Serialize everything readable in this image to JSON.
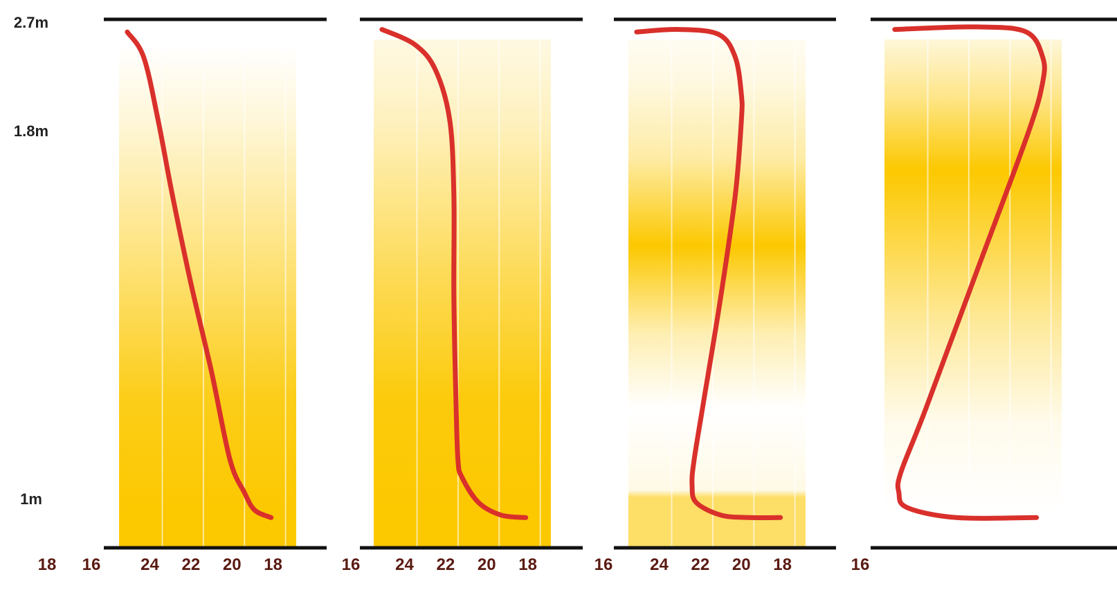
{
  "chart_data": {
    "type": "line",
    "title": "",
    "xlabel": "",
    "ylabel": "",
    "y_tick_labels": [
      "2.7m",
      "1.8m",
      "1m"
    ],
    "y_ticks": [
      2.7,
      1.8,
      1.0
    ],
    "x_tick_labels": [
      "24",
      "22",
      "20",
      "18",
      "16"
    ],
    "x_ticks": [
      24,
      22,
      20,
      18,
      16
    ],
    "stray_labels": [
      "18",
      "16"
    ],
    "ylim": [
      0.6,
      2.7
    ],
    "xlim": [
      25.5,
      16
    ],
    "grid": true,
    "colors": {
      "curve": "#d9302b",
      "fill": "#fcc800",
      "frame": "#111111"
    },
    "panels": [
      {
        "x_tick_labels": [
          "24",
          "22",
          "20",
          "18"
        ],
        "fill_profile": [
          [
            0.75,
            1.0
          ],
          [
            1.2,
            0.9
          ],
          [
            1.7,
            0.55
          ],
          [
            2.3,
            0.15
          ],
          [
            2.6,
            0.0
          ]
        ],
        "series": [
          {
            "x": [
              25.1,
              24.3,
              23.6,
              22.9,
              22.0,
              21.0,
              20.1,
              19.4,
              18.9,
              18.1
            ],
            "y": [
              2.65,
              2.55,
              2.3,
              2.0,
              1.65,
              1.3,
              0.95,
              0.82,
              0.75,
              0.72
            ]
          }
        ]
      },
      {
        "x_tick_labels": [
          "24",
          "22",
          "20",
          "18"
        ],
        "fill_profile": [
          [
            0.75,
            1.0
          ],
          [
            1.2,
            0.95
          ],
          [
            1.7,
            0.65
          ],
          [
            2.3,
            0.25
          ],
          [
            2.6,
            0.12
          ]
        ],
        "series": [
          {
            "x": [
              25.1,
              23.5,
              22.5,
              21.8,
              21.6,
              21.6,
              21.5,
              21.4,
              21.2,
              20.4,
              19.3,
              18.1
            ],
            "y": [
              2.66,
              2.6,
              2.5,
              2.3,
              2.0,
              1.6,
              1.2,
              0.95,
              0.88,
              0.78,
              0.73,
              0.72
            ]
          }
        ]
      },
      {
        "x_tick_labels": [
          "24",
          "22",
          "20",
          "18"
        ],
        "fill_profile": [
          [
            0.72,
            0.6
          ],
          [
            0.8,
            0.6
          ],
          [
            0.83,
            0.1
          ],
          [
            1.15,
            0.0
          ],
          [
            1.45,
            0.3
          ],
          [
            1.8,
            1.0
          ],
          [
            2.15,
            0.35
          ],
          [
            2.45,
            0.12
          ],
          [
            2.66,
            0.05
          ]
        ],
        "series": [
          {
            "x": [
              25.1,
              23.0,
              21.1,
              20.3,
              20.0,
              20.0,
              20.3,
              21.0,
              21.8,
              22.3,
              22.4,
              22.2,
              21.0,
              19.6,
              18.1
            ],
            "y": [
              2.65,
              2.66,
              2.64,
              2.55,
              2.4,
              2.3,
              2.0,
              1.6,
              1.2,
              0.95,
              0.85,
              0.78,
              0.73,
              0.72,
              0.72
            ]
          }
        ]
      },
      {
        "x_tick_labels": [],
        "fill_profile": [
          [
            0.75,
            0.0
          ],
          [
            1.1,
            0.08
          ],
          [
            1.5,
            0.4
          ],
          [
            2.1,
            1.0
          ],
          [
            2.4,
            0.45
          ],
          [
            2.62,
            0.15
          ]
        ],
        "series": [
          {
            "x": [
              25.0,
              21.0,
              18.6,
              17.8,
              17.8,
              18.5,
              21.0,
              23.5,
              24.7,
              24.8,
              24.4,
              22.0,
              18.1
            ],
            "y": [
              2.66,
              2.67,
              2.65,
              2.55,
              2.45,
              2.25,
              1.7,
              1.15,
              0.9,
              0.82,
              0.76,
              0.72,
              0.72
            ]
          }
        ]
      }
    ]
  }
}
